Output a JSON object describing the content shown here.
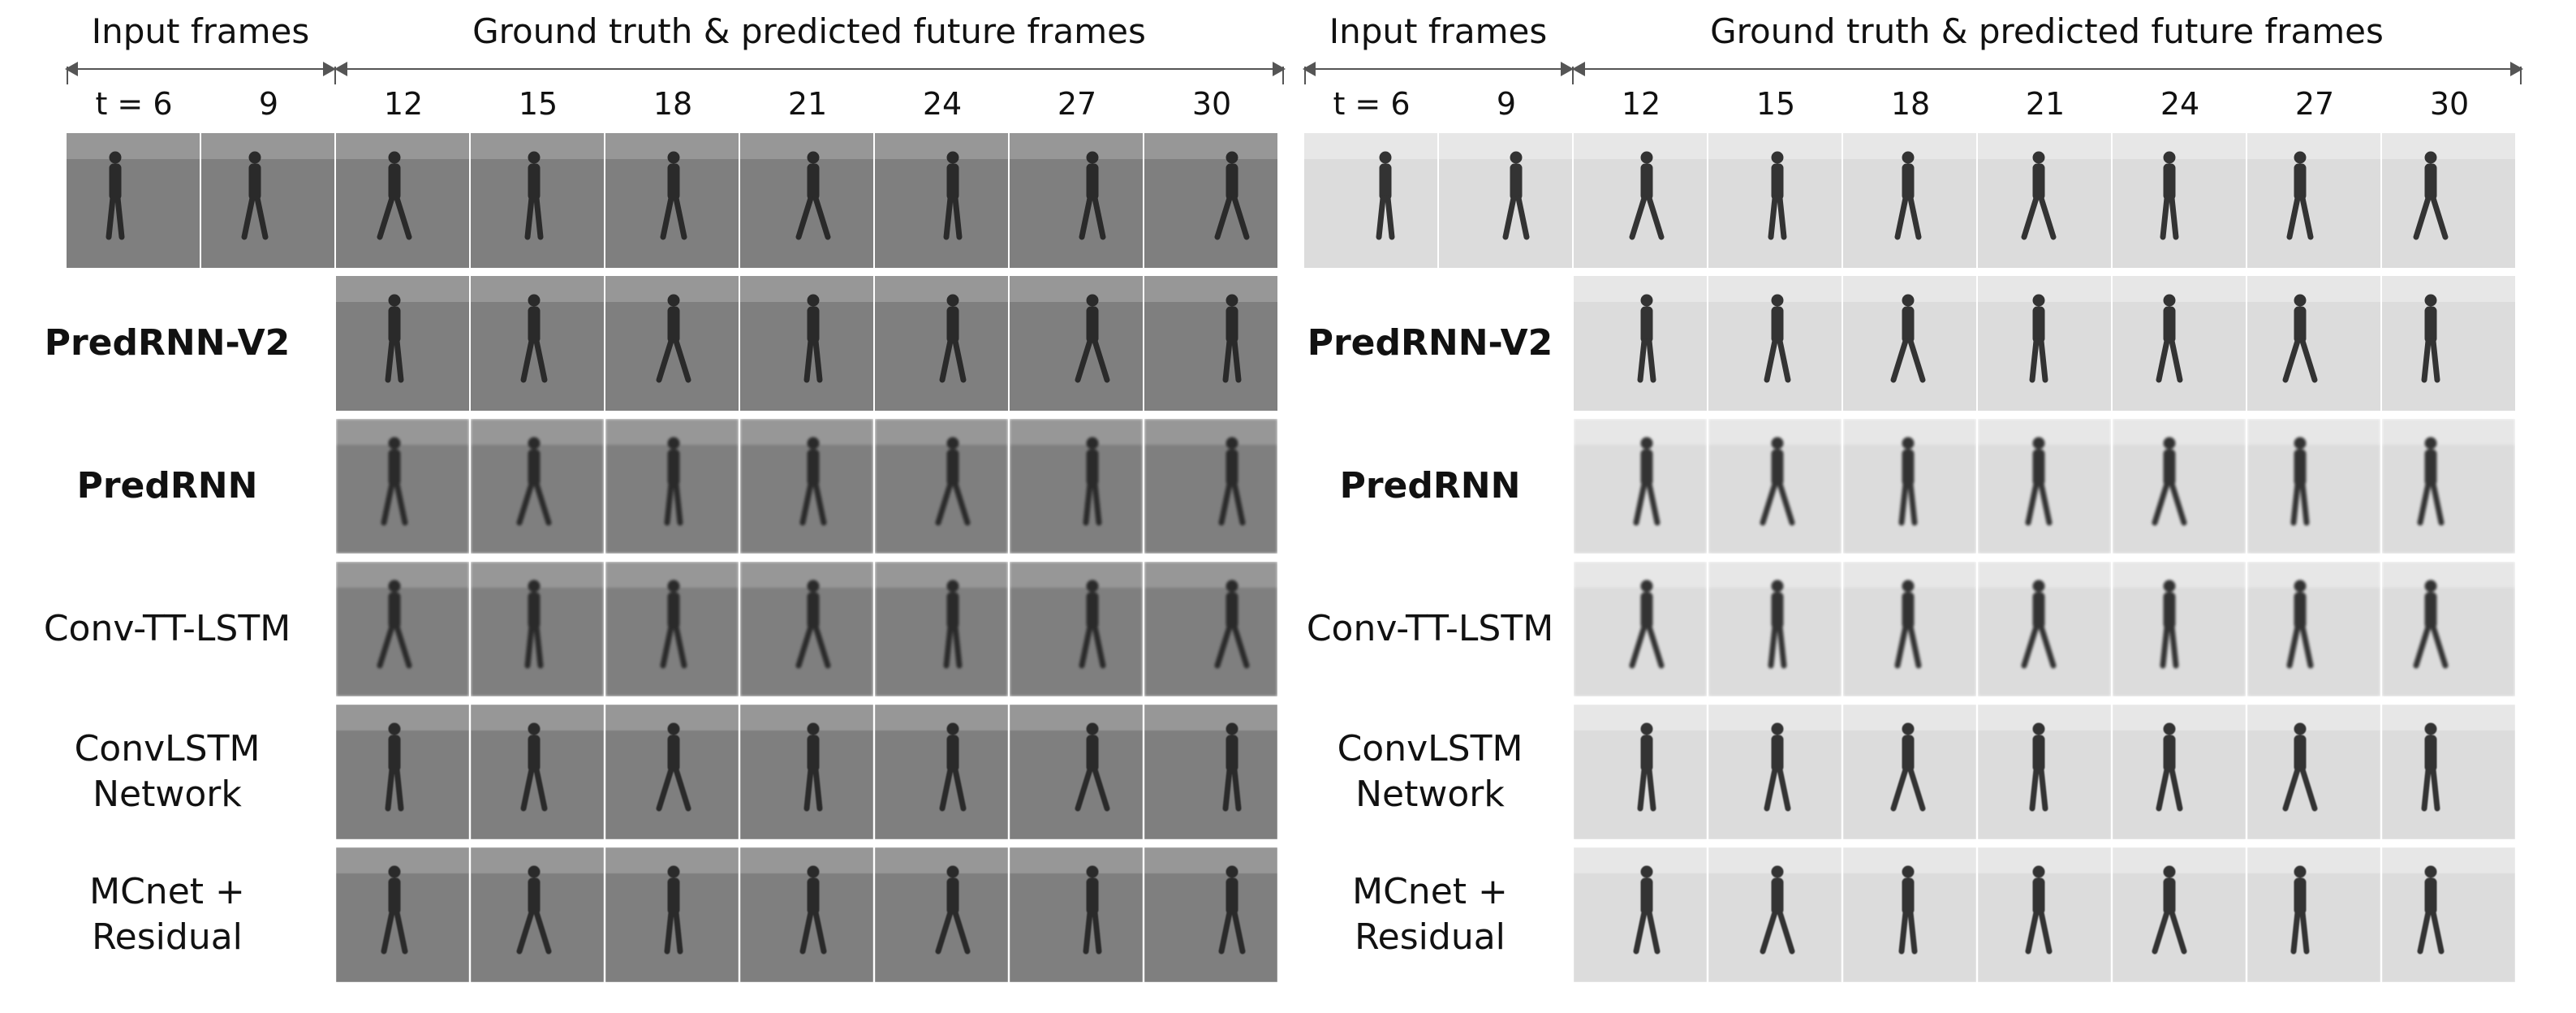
{
  "figure": {
    "panels": [
      {
        "id": "left",
        "background": "#7f7f7f",
        "horizon": "#a6a6a6",
        "figure_color": "#2a2a2a",
        "header_input": "Input frames",
        "header_future": "Ground truth & predicted future frames",
        "time_labels": [
          "t = 6",
          "9",
          "12",
          "15",
          "18",
          "21",
          "24",
          "27",
          "30"
        ],
        "rows": [
          {
            "label_lines": [
              "PredRNN-V2"
            ],
            "bold": true
          },
          {
            "label_lines": [
              "PredRNN"
            ],
            "bold": true
          },
          {
            "label_lines": [
              "Conv-TT-LSTM"
            ],
            "bold": false
          },
          {
            "label_lines": [
              "ConvLSTM",
              "Network"
            ],
            "bold": false
          },
          {
            "label_lines": [
              "MCnet +",
              "Residual"
            ],
            "bold": false
          }
        ]
      },
      {
        "id": "right",
        "background": "#dcdcdc",
        "horizon": "#eeeeee",
        "figure_color": "#333333",
        "header_input": "Input frames",
        "header_future": "Ground truth & predicted future frames",
        "time_labels": [
          "t = 6",
          "9",
          "12",
          "15",
          "18",
          "21",
          "24",
          "27",
          "30"
        ],
        "rows": [
          {
            "label_lines": [
              "PredRNN-V2"
            ],
            "bold": true
          },
          {
            "label_lines": [
              "PredRNN"
            ],
            "bold": true
          },
          {
            "label_lines": [
              "Conv-TT-LSTM"
            ],
            "bold": false
          },
          {
            "label_lines": [
              "ConvLSTM",
              "Network"
            ],
            "bold": false
          },
          {
            "label_lines": [
              "MCnet +",
              "Residual"
            ],
            "bold": false
          }
        ]
      }
    ]
  }
}
